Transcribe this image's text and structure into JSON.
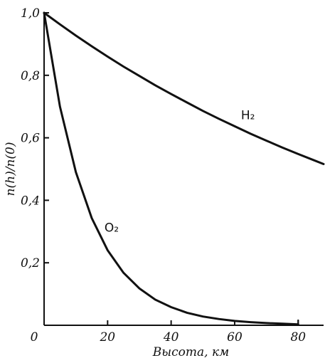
{
  "chart_data": {
    "type": "line",
    "title": "",
    "xlabel": "Высота, км",
    "ylabel": "n(h)/n(0)",
    "xlim": [
      0,
      88
    ],
    "ylim": [
      0,
      1.0
    ],
    "x_ticks": [
      {
        "value": 0,
        "label": "0"
      },
      {
        "value": 20,
        "label": "20"
      },
      {
        "value": 40,
        "label": "40"
      },
      {
        "value": 60,
        "label": "60"
      },
      {
        "value": 80,
        "label": "80"
      }
    ],
    "y_ticks": [
      {
        "value": 0.2,
        "label": "0,2"
      },
      {
        "value": 0.4,
        "label": "0,4"
      },
      {
        "value": 0.6,
        "label": "0,6"
      },
      {
        "value": 0.8,
        "label": "0,8"
      },
      {
        "value": 1.0,
        "label": "1,0"
      }
    ],
    "grid": false,
    "series": [
      {
        "name": "H₂",
        "label_at": [
          62,
          0.66
        ],
        "x": [
          0,
          5,
          10,
          15,
          20,
          25,
          30,
          35,
          40,
          45,
          50,
          55,
          60,
          65,
          70,
          75,
          80,
          85,
          88
        ],
        "y": [
          1.0,
          0.963,
          0.927,
          0.893,
          0.86,
          0.828,
          0.798,
          0.768,
          0.74,
          0.713,
          0.686,
          0.661,
          0.637,
          0.613,
          0.591,
          0.569,
          0.548,
          0.528,
          0.516
        ]
      },
      {
        "name": "O₂",
        "label_at": [
          19,
          0.3
        ],
        "x": [
          0,
          5,
          10,
          15,
          20,
          25,
          30,
          35,
          40,
          45,
          50,
          55,
          60,
          65,
          70,
          75,
          80
        ],
        "y": [
          1.0,
          0.7,
          0.49,
          0.343,
          0.24,
          0.168,
          0.118,
          0.082,
          0.058,
          0.04,
          0.028,
          0.02,
          0.014,
          0.01,
          0.007,
          0.005,
          0.003
        ]
      }
    ]
  }
}
